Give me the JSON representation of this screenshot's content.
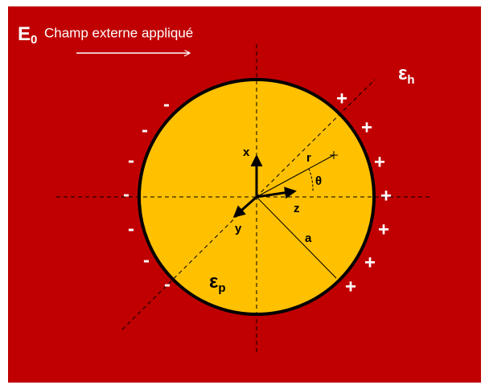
{
  "field": {
    "symbol": "E",
    "subscript": "0",
    "label": "Champ externe appliqué"
  },
  "host": {
    "symbol": "ε",
    "subscript": "h"
  },
  "particle": {
    "symbol": "ε",
    "subscript": "p"
  },
  "axes": {
    "x": "x",
    "y": "y",
    "z": "z"
  },
  "vectors": {
    "r": "r",
    "theta": "θ",
    "a": "a"
  },
  "charges": {
    "negative": [
      "-",
      "-",
      "-",
      "-",
      "-",
      "-",
      "-"
    ],
    "positive": [
      "+",
      "+",
      "+",
      "+",
      "+",
      "+",
      "+"
    ]
  }
}
